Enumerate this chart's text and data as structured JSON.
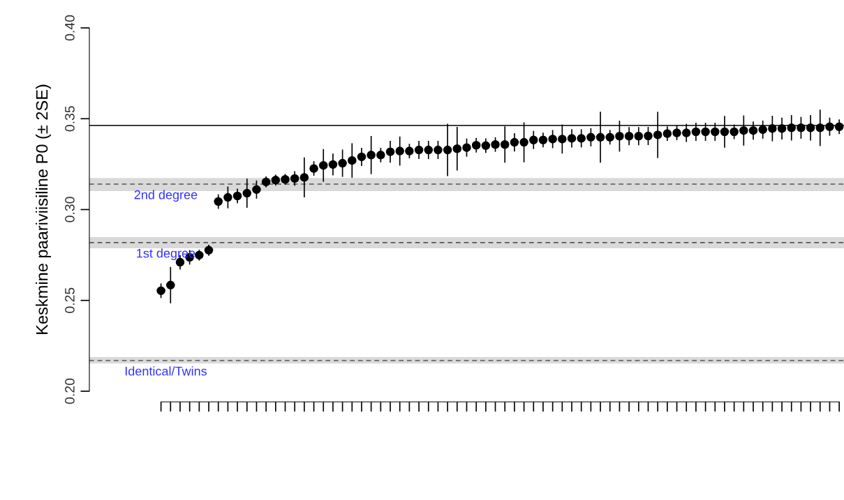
{
  "chart_data": {
    "type": "scatter",
    "ylabel": "Keskmine paariviisiline P0 (± 2SE)",
    "categories": [
      null,
      null,
      null,
      null,
      null,
      null,
      null,
      null,
      null,
      null,
      null,
      null,
      null,
      null,
      null,
      null,
      null,
      null,
      null,
      null,
      null,
      null,
      null,
      null,
      null,
      null,
      null,
      null,
      null,
      null,
      null,
      null,
      null,
      null,
      null,
      null,
      null,
      null,
      null,
      null,
      null,
      null,
      null,
      null,
      null,
      null,
      null,
      null,
      null,
      null,
      null,
      null,
      null,
      null,
      null,
      null,
      null,
      null,
      null,
      null,
      null,
      null,
      null,
      null,
      null,
      null,
      null,
      null,
      null,
      null,
      null,
      null,
      null,
      null,
      null,
      null,
      null,
      null,
      null
    ],
    "series": [
      {
        "color": "#000000",
        "values": [
          null,
          null,
          null,
          null,
          null,
          null,
          null,
          0.2553,
          0.2584,
          0.271,
          0.2737,
          0.2749,
          0.2776,
          0.3044,
          0.3067,
          0.3075,
          0.309,
          0.311,
          0.3152,
          0.3162,
          0.3166,
          0.3171,
          0.3177,
          0.3226,
          0.3243,
          0.3248,
          0.3255,
          0.327,
          0.329,
          0.33,
          0.33,
          0.3318,
          0.3322,
          0.3322,
          0.3328,
          0.3328,
          0.3328,
          0.3328,
          0.3335,
          0.3341,
          0.3354,
          0.3352,
          0.3358,
          0.3358,
          0.337,
          0.337,
          0.3383,
          0.3383,
          0.3388,
          0.3388,
          0.3392,
          0.3392,
          0.3398,
          0.3398,
          0.3398,
          0.3404,
          0.3404,
          0.3404,
          0.3405,
          0.3411,
          0.3418,
          0.3422,
          0.3422,
          0.3428,
          0.3428,
          0.3428,
          0.3428,
          0.3428,
          0.3435,
          0.3435,
          0.344,
          0.3446,
          0.3446,
          0.345,
          0.345,
          0.345,
          0.345,
          0.3456,
          0.3456
        ],
        "errors": [
          null,
          null,
          null,
          null,
          null,
          null,
          null,
          0.004,
          0.01,
          0.004,
          0.004,
          0.003,
          0.003,
          0.004,
          0.006,
          0.004,
          0.008,
          0.005,
          0.003,
          0.003,
          0.003,
          0.004,
          0.011,
          0.004,
          0.009,
          0.006,
          0.0075,
          0.0095,
          0.005,
          0.0105,
          0.004,
          0.006,
          0.008,
          0.004,
          0.005,
          0.005,
          0.005,
          0.0144,
          0.012,
          0.005,
          0.004,
          0.004,
          0.004,
          0.01,
          0.005,
          0.011,
          0.005,
          0.004,
          0.005,
          0.008,
          0.005,
          0.005,
          0.005,
          0.014,
          0.004,
          0.0085,
          0.005,
          0.005,
          0.005,
          0.0127,
          0.004,
          0.004,
          0.005,
          0.005,
          0.005,
          0.005,
          0.0087,
          0.004,
          0.0083,
          0.005,
          0.005,
          0.007,
          0.006,
          0.007,
          0.006,
          0.007,
          0.01,
          0.005,
          0.004
        ]
      }
    ],
    "ylim": [
      0.2,
      0.4
    ],
    "yticks": [
      {
        "value": 0.2,
        "label": "0.20"
      },
      {
        "value": 0.25,
        "label": "0.25"
      },
      {
        "value": 0.3,
        "label": "0.30"
      },
      {
        "value": 0.35,
        "label": "0.35"
      },
      {
        "value": 0.4,
        "label": "0.40"
      }
    ],
    "marker": "circle",
    "grid": false,
    "legend": false,
    "ref_lines": [
      {
        "axis": "y",
        "value": 0.3463,
        "color": "#222222",
        "line_style": "solid"
      },
      {
        "axis": "y",
        "value": 0.314,
        "label": "2nd degree",
        "color": "#555555",
        "line_style": "dashed"
      },
      {
        "axis": "y",
        "value": 0.2818,
        "label": "1st degree",
        "color": "#555555",
        "line_style": "dashed"
      },
      {
        "axis": "y",
        "value": 0.2169,
        "label": "Identical/Twins",
        "color": "#555555",
        "line_style": "dashed"
      }
    ],
    "bands": [
      {
        "axis": "y",
        "from": 0.3102,
        "to": 0.3174,
        "color": "#d9d9d9"
      },
      {
        "axis": "y",
        "from": 0.2787,
        "to": 0.2848,
        "color": "#d9d9d9"
      },
      {
        "axis": "y",
        "from": 0.2153,
        "to": 0.2188,
        "color": "#d9d9d9"
      }
    ]
  }
}
